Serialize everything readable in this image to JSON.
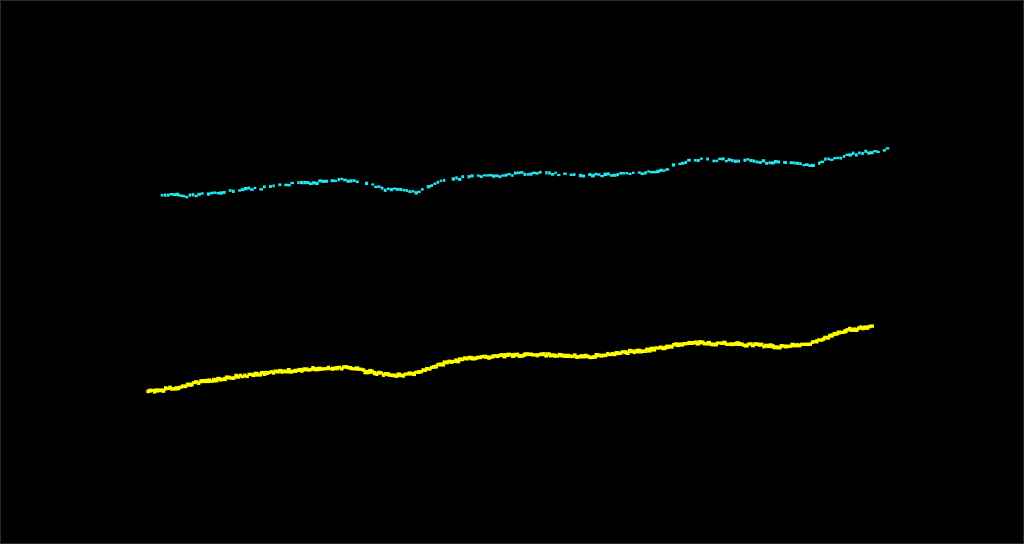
{
  "scene": {
    "background": "#000000",
    "frame_color": "#2a2a2a"
  },
  "traces": [
    {
      "id": "upper-trace",
      "color": "#22e6f0"
    },
    {
      "id": "lower-trace",
      "color": "#ffff00"
    }
  ]
}
